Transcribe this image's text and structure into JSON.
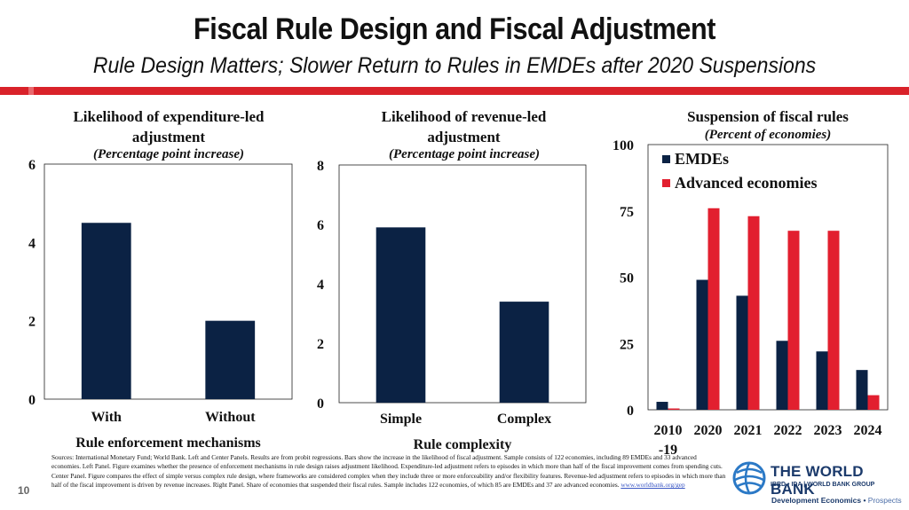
{
  "header": {
    "title": "Fiscal Rule Design and Fiscal Adjustment",
    "subtitle": "Rule Design Matters; Slower Return to Rules in EMDEs after 2020 Suspensions"
  },
  "colors": {
    "navy": "#0b2244",
    "red": "#e21f2f",
    "accent_bar": "#d9222a"
  },
  "chart_data": [
    {
      "type": "bar",
      "title": "Likelihood of expenditure-led adjustment",
      "subtitle": "(Percentage point increase)",
      "xlabel": "Rule enforcement mechanisms",
      "categories": [
        "With",
        "Without"
      ],
      "values": [
        4.5,
        2.0
      ],
      "ylim": [
        0,
        6
      ],
      "yticks": [
        "0",
        "2",
        "4",
        "6"
      ],
      "grid": false
    },
    {
      "type": "bar",
      "title": "Likelihood of revenue-led adjustment",
      "subtitle": "(Percentage point increase)",
      "xlabel": "Rule complexity",
      "categories": [
        "Simple",
        "Complex"
      ],
      "values": [
        5.9,
        3.4
      ],
      "ylim": [
        0,
        8
      ],
      "yticks": [
        "0",
        "2",
        "4",
        "6",
        "8"
      ],
      "grid": false
    },
    {
      "type": "bar",
      "title": "Suspension of fiscal rules",
      "subtitle": "(Percent of economies)",
      "categories": [
        "2010\n-19",
        "2020",
        "2021",
        "2022",
        "2023",
        "2024"
      ],
      "series": [
        {
          "name": "EMDEs",
          "values": [
            3,
            49,
            43,
            26,
            22,
            15
          ]
        },
        {
          "name": "Advanced economies",
          "values": [
            0.5,
            76,
            73,
            67.5,
            67.5,
            5.5
          ]
        }
      ],
      "ylim": [
        0,
        100
      ],
      "yticks": [
        "0",
        "25",
        "50",
        "75",
        "100"
      ],
      "legend": "top-left",
      "grid": false
    }
  ],
  "notes": {
    "text": "Sources: International Monetary Fund; World Bank. Left and Center Panels. Results are from probit regressions. Bars show the increase in the likelihood of fiscal adjustment. Sample consists of 122 economies, including 89 EMDEs and 33 advanced economies. Left Panel. Figure examines whether the presence of enforcement mechanisms in rule design raises adjustment likelihood. Expenditure-led adjustment refers to episodes in which more than half of the fiscal improvement comes from spending cuts. Center Panel. Figure compares the effect of simple versus complex rule design, where frameworks are considered complex when they include three or more enforceability and/or flexibility features. Revenue-led adjustment refers to episodes in which more than half of the fiscal improvement is driven by revenue increases. Right Panel. Share of economies that suspended their fiscal rules. Sample includes 122 economies, of which 85 are EMDEs and 37 are advanced economies.",
    "link": "www.worldbank.org/gep"
  },
  "footer": {
    "page_number": "10",
    "brand": "THE WORLD BANK",
    "brand_sub": "IBRD • IDA | WORLD BANK GROUP",
    "dept": "Development Economics",
    "dept_sep": " • ",
    "dept_unit": "Prospects"
  }
}
